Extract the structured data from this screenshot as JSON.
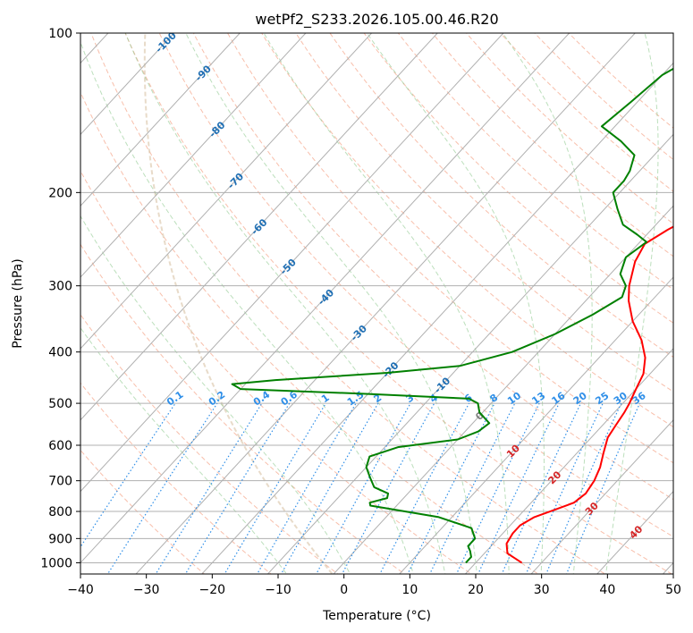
{
  "chart_data": {
    "type": "line",
    "title": "wetPf2_S233.2026.105.00.46.R20",
    "xlabel": "Temperature (°C)",
    "ylabel": "Pressure (hPa)",
    "xlim": [
      -40,
      50
    ],
    "ylim": [
      1050,
      100
    ],
    "y_scale": "log",
    "grid": true,
    "x_ticks": [
      -40,
      -30,
      -20,
      -10,
      0,
      10,
      20,
      30,
      40,
      50
    ],
    "x_tick_labels": [
      "−40",
      "−30",
      "−20",
      "−10",
      "0",
      "10",
      "20",
      "30",
      "40",
      "50"
    ],
    "y_ticks": [
      1000,
      900,
      800,
      700,
      600,
      500,
      400,
      300,
      200,
      100
    ],
    "y_tick_labels": [
      "1000",
      "900",
      "800",
      "700",
      "600",
      "500",
      "400",
      "300",
      "200",
      "100"
    ],
    "series": [
      {
        "role": "temperature",
        "color": "#ff0000",
        "points": [
          [
            27,
            1000
          ],
          [
            23.5,
            960
          ],
          [
            22,
            920
          ],
          [
            21.5,
            880
          ],
          [
            21.5,
            850
          ],
          [
            22.5,
            820
          ],
          [
            24.5,
            795
          ],
          [
            26.5,
            770
          ],
          [
            27,
            740
          ],
          [
            26.5,
            700
          ],
          [
            25.5,
            660
          ],
          [
            24,
            620
          ],
          [
            22.5,
            580
          ],
          [
            22,
            550
          ],
          [
            21.5,
            520
          ],
          [
            21,
            500
          ],
          [
            20,
            470
          ],
          [
            19,
            440
          ],
          [
            17,
            410
          ],
          [
            14,
            380
          ],
          [
            10,
            350
          ],
          [
            6.5,
            320
          ],
          [
            4.5,
            300
          ],
          [
            2,
            270
          ],
          [
            1,
            250
          ],
          [
            2.5,
            235
          ],
          [
            5.5,
            215
          ],
          [
            6.5,
            200
          ],
          [
            6,
            185
          ],
          [
            5.8,
            170
          ],
          [
            6.5,
            155
          ],
          [
            7.5,
            140
          ],
          [
            9,
            128
          ],
          [
            9.5,
            120
          ],
          [
            8,
            112
          ],
          [
            7.5,
            105
          ],
          [
            7,
            100
          ]
        ]
      },
      {
        "role": "dewpoint",
        "color": "#008000",
        "points": [
          [
            18.5,
            1000
          ],
          [
            18.5,
            975
          ],
          [
            17.5,
            950
          ],
          [
            16.5,
            930
          ],
          [
            16.5,
            900
          ],
          [
            14.5,
            860
          ],
          [
            8,
            820
          ],
          [
            -4,
            780
          ],
          [
            -4.5,
            770
          ],
          [
            -2.5,
            755
          ],
          [
            -3,
            740
          ],
          [
            -6,
            720
          ],
          [
            -8,
            690
          ],
          [
            -10,
            660
          ],
          [
            -11,
            630
          ],
          [
            -8,
            605
          ],
          [
            0,
            585
          ],
          [
            2,
            565
          ],
          [
            2.5,
            545
          ],
          [
            -0.5,
            520
          ],
          [
            -2,
            500
          ],
          [
            -4,
            490
          ],
          [
            -20,
            480
          ],
          [
            -40,
            470
          ],
          [
            -42,
            460
          ],
          [
            -36,
            452
          ],
          [
            -20,
            438
          ],
          [
            -10,
            425
          ],
          [
            -4,
            400
          ],
          [
            0,
            370
          ],
          [
            3,
            340
          ],
          [
            5,
            315
          ],
          [
            4,
            300
          ],
          [
            1.5,
            285
          ],
          [
            0,
            265
          ],
          [
            1,
            248
          ],
          [
            -1.5,
            240
          ],
          [
            -5,
            230
          ],
          [
            -8,
            215
          ],
          [
            -11,
            200
          ],
          [
            -11,
            190
          ],
          [
            -11.5,
            182
          ],
          [
            -13,
            170
          ],
          [
            -17,
            160
          ],
          [
            -22,
            150
          ],
          [
            -21,
            135
          ],
          [
            -20,
            120
          ],
          [
            -18,
            112
          ],
          [
            -10,
            108
          ],
          [
            -5,
            104
          ],
          [
            -2,
            100
          ]
        ]
      }
    ],
    "dry_adiabats_K": [
      250,
      260,
      270,
      280,
      290,
      300,
      310,
      320,
      330,
      340,
      350,
      360,
      370,
      380,
      390,
      400,
      410,
      420,
      430,
      440,
      450
    ],
    "moist_adiabats_C": [
      -10,
      0,
      10,
      15,
      20,
      25,
      30,
      35,
      40
    ],
    "mixing_ratio_lines": [
      "0.1",
      "0.2",
      "0.4",
      "0.6",
      "1",
      "1.5",
      "2",
      "3",
      "4",
      "6",
      "8",
      "10",
      "13",
      "16",
      "20",
      "25",
      "30",
      "36"
    ],
    "isotherm_labels_blue": [
      "-100",
      "-90",
      "-80",
      "-70",
      "-60",
      "-50",
      "-40",
      "-30",
      "-20",
      "-10"
    ],
    "isotherm_labels_gray": [
      "0"
    ],
    "isotherm_labels_red": [
      "10",
      "20",
      "30",
      "40"
    ]
  }
}
